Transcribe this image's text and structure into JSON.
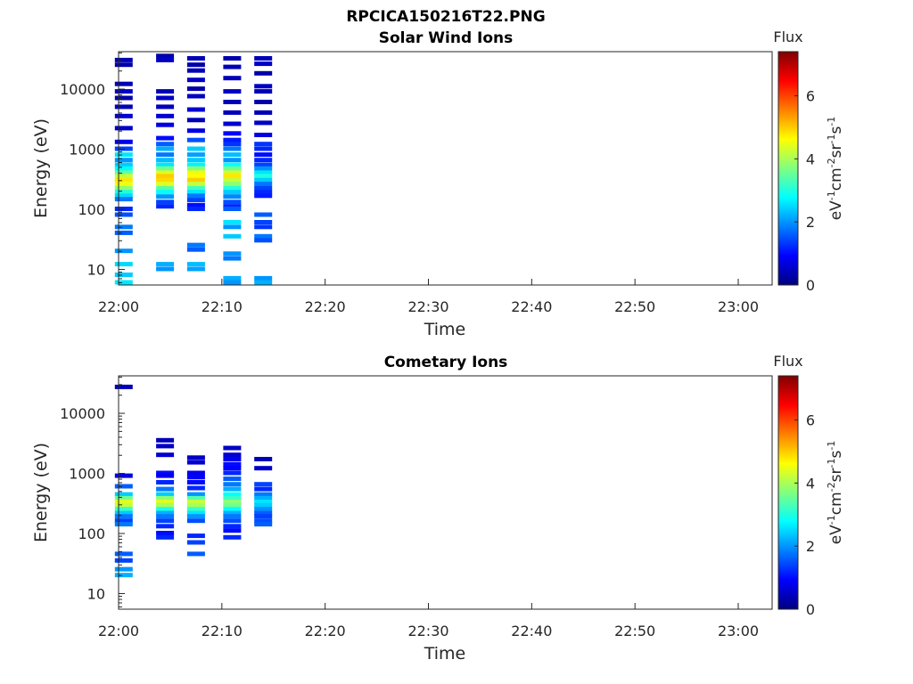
{
  "figure_title": "RPCICA150216T22.PNG",
  "colors": {
    "jet": [
      "#000080",
      "#0000ff",
      "#0080ff",
      "#00ffff",
      "#80ff80",
      "#ffff00",
      "#ff8000",
      "#ff0000",
      "#800000"
    ]
  },
  "chart_data": [
    {
      "type": "heatmap",
      "title": "Solar Wind Ions",
      "xlabel": "Time",
      "ylabel": "Energy (eV)",
      "x_ticks": [
        "22:00",
        "22:10",
        "22:20",
        "22:30",
        "22:40",
        "22:50",
        "23:00"
      ],
      "y_ticks": [
        "10",
        "100",
        "1000",
        "10000"
      ],
      "y_scale": "log",
      "ylim": [
        5.5,
        42000
      ],
      "colorbar": {
        "title": "Flux",
        "unit_base": "eV",
        "unit_exp1": "-1",
        "unit_cm": "cm",
        "unit_exp2": "-2",
        "unit_sr": "sr",
        "unit_exp3": "-1",
        "unit_s": "s",
        "unit_exp4": "-1",
        "range": [
          0,
          7.4
        ],
        "ticks": [
          "0",
          "2",
          "4",
          "6"
        ]
      },
      "sweeps": [
        {
          "t": "22:00.5",
          "cells": [
            [
              30000,
              0.4
            ],
            [
              25000,
              0.3
            ],
            [
              12000,
              0.4
            ],
            [
              9000,
              0.5
            ],
            [
              7000,
              0.3
            ],
            [
              5000,
              0.4
            ],
            [
              3500,
              0.6
            ],
            [
              2200,
              0.5
            ],
            [
              1300,
              0.8
            ],
            [
              1000,
              1.4
            ],
            [
              800,
              2.6
            ],
            [
              650,
              2.0
            ],
            [
              540,
              2.4
            ],
            [
              470,
              2.8
            ],
            [
              400,
              3.5
            ],
            [
              350,
              4.2
            ],
            [
              300,
              4.8
            ],
            [
              260,
              4.5
            ],
            [
              220,
              3.8
            ],
            [
              190,
              3.0
            ],
            [
              165,
              2.5
            ],
            [
              145,
              1.8
            ],
            [
              100,
              1.2
            ],
            [
              80,
              1.5
            ],
            [
              50,
              1.8
            ],
            [
              40,
              1.6
            ],
            [
              20,
              2.0
            ],
            [
              12,
              2.5
            ],
            [
              8,
              2.4
            ],
            [
              6,
              2.6
            ]
          ]
        },
        {
          "t": "22:04.5",
          "cells": [
            [
              35000,
              0.3
            ],
            [
              30000,
              0.5
            ],
            [
              9000,
              0.4
            ],
            [
              7000,
              0.5
            ],
            [
              5000,
              0.4
            ],
            [
              3500,
              0.6
            ],
            [
              2500,
              0.7
            ],
            [
              1500,
              1.0
            ],
            [
              1200,
              1.6
            ],
            [
              1000,
              2.2
            ],
            [
              800,
              1.8
            ],
            [
              650,
              2.3
            ],
            [
              540,
              2.6
            ],
            [
              470,
              3.6
            ],
            [
              400,
              4.4
            ],
            [
              350,
              5.0
            ],
            [
              300,
              4.9
            ],
            [
              260,
              4.4
            ],
            [
              220,
              3.4
            ],
            [
              190,
              2.8
            ],
            [
              160,
              2.0
            ],
            [
              130,
              1.4
            ],
            [
              110,
              1.2
            ],
            [
              12,
              2.2
            ],
            [
              10,
              2.0
            ]
          ]
        },
        {
          "t": "22:07.5",
          "cells": [
            [
              32000,
              0.4
            ],
            [
              25000,
              0.3
            ],
            [
              20000,
              0.4
            ],
            [
              14000,
              0.5
            ],
            [
              10000,
              0.3
            ],
            [
              7500,
              0.5
            ],
            [
              4500,
              0.6
            ],
            [
              3000,
              0.4
            ],
            [
              2000,
              0.7
            ],
            [
              1400,
              1.5
            ],
            [
              1000,
              2.4
            ],
            [
              800,
              2.1
            ],
            [
              650,
              2.4
            ],
            [
              540,
              2.7
            ],
            [
              470,
              3.8
            ],
            [
              400,
              4.5
            ],
            [
              350,
              4.6
            ],
            [
              300,
              5.0
            ],
            [
              260,
              4.2
            ],
            [
              220,
              3.2
            ],
            [
              190,
              2.6
            ],
            [
              165,
              1.8
            ],
            [
              140,
              1.4
            ],
            [
              115,
              1.0
            ],
            [
              100,
              1.2
            ],
            [
              25,
              1.8
            ],
            [
              21,
              1.6
            ],
            [
              12,
              2.3
            ],
            [
              10,
              2.1
            ]
          ]
        },
        {
          "t": "22:11",
          "cells": [
            [
              32000,
              0.3
            ],
            [
              23000,
              0.4
            ],
            [
              15000,
              0.4
            ],
            [
              9000,
              0.5
            ],
            [
              6000,
              0.4
            ],
            [
              4000,
              0.4
            ],
            [
              2600,
              0.6
            ],
            [
              1800,
              0.9
            ],
            [
              1400,
              1.1
            ],
            [
              1200,
              1.3
            ],
            [
              1000,
              1.8
            ],
            [
              800,
              2.3
            ],
            [
              650,
              2.0
            ],
            [
              540,
              2.8
            ],
            [
              470,
              3.6
            ],
            [
              400,
              4.3
            ],
            [
              350,
              4.8
            ],
            [
              300,
              4.2
            ],
            [
              260,
              3.8
            ],
            [
              220,
              3.0
            ],
            [
              190,
              2.4
            ],
            [
              160,
              1.9
            ],
            [
              130,
              1.5
            ],
            [
              110,
              1.2
            ],
            [
              100,
              1.6
            ],
            [
              60,
              2.6
            ],
            [
              50,
              2.0
            ],
            [
              35,
              2.4
            ],
            [
              18,
              2.0
            ],
            [
              15,
              1.8
            ],
            [
              7,
              2.2
            ],
            [
              6,
              2.0
            ]
          ]
        },
        {
          "t": "22:14",
          "cells": [
            [
              32000,
              0.4
            ],
            [
              26000,
              0.5
            ],
            [
              18000,
              0.3
            ],
            [
              11000,
              0.5
            ],
            [
              9000,
              0.4
            ],
            [
              6000,
              0.3
            ],
            [
              4000,
              0.4
            ],
            [
              2700,
              0.5
            ],
            [
              1700,
              0.7
            ],
            [
              1200,
              1.3
            ],
            [
              1000,
              1.2
            ],
            [
              800,
              1.0
            ],
            [
              650,
              1.2
            ],
            [
              540,
              1.4
            ],
            [
              470,
              2.0
            ],
            [
              400,
              2.6
            ],
            [
              350,
              3.0
            ],
            [
              300,
              2.4
            ],
            [
              260,
              1.8
            ],
            [
              220,
              1.4
            ],
            [
              190,
              1.2
            ],
            [
              165,
              1.1
            ],
            [
              80,
              1.6
            ],
            [
              60,
              1.4
            ],
            [
              50,
              1.3
            ],
            [
              35,
              1.8
            ],
            [
              30,
              1.5
            ],
            [
              7,
              2.0
            ],
            [
              6,
              2.2
            ]
          ]
        }
      ]
    },
    {
      "type": "heatmap",
      "title": "Cometary Ions",
      "xlabel": "Time",
      "ylabel": "Energy (eV)",
      "x_ticks": [
        "22:00",
        "22:10",
        "22:20",
        "22:30",
        "22:40",
        "22:50",
        "23:00"
      ],
      "y_ticks": [
        "10",
        "100",
        "1000",
        "10000"
      ],
      "y_scale": "log",
      "ylim": [
        5.5,
        42000
      ],
      "colorbar": {
        "title": "Flux",
        "unit_base": "eV",
        "unit_exp1": "-1",
        "unit_cm": "cm",
        "unit_exp2": "-2",
        "unit_sr": "sr",
        "unit_exp3": "-1",
        "unit_s": "s",
        "unit_exp4": "-1",
        "range": [
          0,
          7.4
        ],
        "ticks": [
          "0",
          "2",
          "4",
          "6"
        ]
      },
      "sweeps": [
        {
          "t": "22:00.5",
          "cells": [
            [
              27000,
              0.4
            ],
            [
              900,
              0.7
            ],
            [
              600,
              1.6
            ],
            [
              440,
              2.4
            ],
            [
              380,
              3.6
            ],
            [
              330,
              4.4
            ],
            [
              290,
              4.2
            ],
            [
              250,
              3.2
            ],
            [
              215,
              2.4
            ],
            [
              190,
              1.8
            ],
            [
              160,
              1.4
            ],
            [
              140,
              1.8
            ],
            [
              45,
              1.6
            ],
            [
              35,
              1.4
            ],
            [
              25,
              2.0
            ],
            [
              20,
              2.2
            ]
          ]
        },
        {
          "t": "22:04.5",
          "cells": [
            [
              3500,
              0.4
            ],
            [
              2800,
              0.5
            ],
            [
              2000,
              0.6
            ],
            [
              1000,
              1.0
            ],
            [
              900,
              0.8
            ],
            [
              700,
              1.2
            ],
            [
              540,
              1.8
            ],
            [
              440,
              2.4
            ],
            [
              380,
              3.8
            ],
            [
              330,
              4.4
            ],
            [
              290,
              4.0
            ],
            [
              250,
              3.0
            ],
            [
              215,
              2.2
            ],
            [
              190,
              1.8
            ],
            [
              160,
              1.4
            ],
            [
              130,
              1.2
            ],
            [
              100,
              1.0
            ],
            [
              85,
              1.2
            ]
          ]
        },
        {
          "t": "22:07.5",
          "cells": [
            [
              1800,
              0.5
            ],
            [
              1500,
              0.6
            ],
            [
              1000,
              0.8
            ],
            [
              850,
              0.9
            ],
            [
              700,
              1.0
            ],
            [
              560,
              1.2
            ],
            [
              440,
              2.0
            ],
            [
              380,
              3.4
            ],
            [
              330,
              4.2
            ],
            [
              290,
              4.0
            ],
            [
              250,
              3.2
            ],
            [
              215,
              2.6
            ],
            [
              190,
              2.0
            ],
            [
              160,
              1.5
            ],
            [
              90,
              1.2
            ],
            [
              70,
              1.4
            ],
            [
              45,
              1.6
            ]
          ]
        },
        {
          "t": "22:11",
          "cells": [
            [
              2600,
              0.5
            ],
            [
              2000,
              0.6
            ],
            [
              1700,
              0.8
            ],
            [
              1400,
              1.0
            ],
            [
              1200,
              0.9
            ],
            [
              1000,
              1.2
            ],
            [
              800,
              1.6
            ],
            [
              650,
              1.8
            ],
            [
              540,
              2.2
            ],
            [
              440,
              2.8
            ],
            [
              380,
              3.2
            ],
            [
              330,
              3.8
            ],
            [
              290,
              3.6
            ],
            [
              250,
              2.8
            ],
            [
              215,
              2.2
            ],
            [
              190,
              1.8
            ],
            [
              160,
              1.5
            ],
            [
              130,
              1.2
            ],
            [
              110,
              1.0
            ],
            [
              85,
              1.2
            ]
          ]
        },
        {
          "t": "22:14",
          "cells": [
            [
              1700,
              0.4
            ],
            [
              1200,
              0.5
            ],
            [
              650,
              1.4
            ],
            [
              540,
              1.2
            ],
            [
              440,
              1.8
            ],
            [
              380,
              2.2
            ],
            [
              330,
              2.6
            ],
            [
              290,
              2.4
            ],
            [
              250,
              2.0
            ],
            [
              215,
              1.6
            ],
            [
              190,
              1.4
            ],
            [
              160,
              1.5
            ],
            [
              140,
              1.6
            ]
          ]
        }
      ]
    }
  ]
}
